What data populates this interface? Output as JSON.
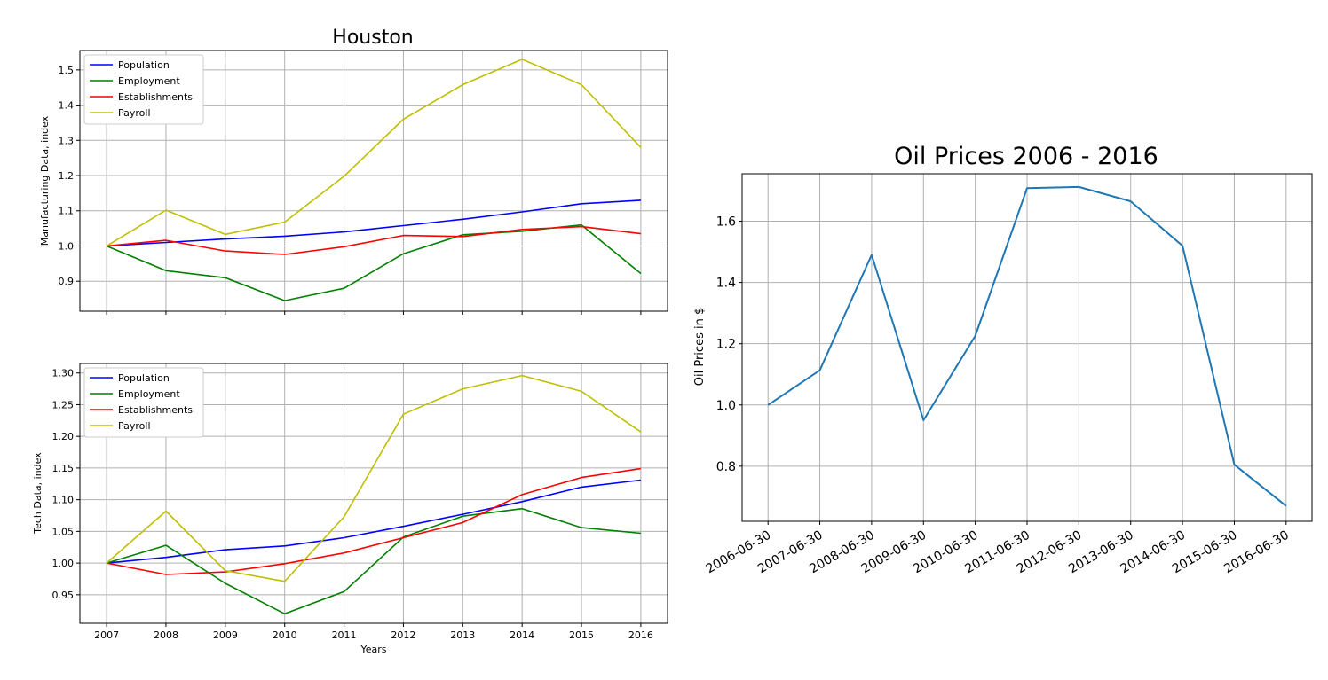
{
  "chart_data": [
    {
      "type": "line",
      "title": "Houston",
      "xlabel": "",
      "ylabel": "Manufacturing Data, index",
      "x": [
        2007,
        2008,
        2009,
        2010,
        2011,
        2012,
        2013,
        2014,
        2015,
        2016
      ],
      "xlim": [
        2006.55,
        2016.45
      ],
      "ylim": [
        0.815,
        1.555
      ],
      "yticks": [
        "0.9",
        "1.0",
        "1.1",
        "1.2",
        "1.3",
        "1.4",
        "1.5"
      ],
      "ytick_values": [
        0.9,
        1.0,
        1.1,
        1.2,
        1.3,
        1.4,
        1.5
      ],
      "show_xticklabels": false,
      "grid": true,
      "legend_position": "upper-left",
      "series": [
        {
          "name": "Population",
          "color": "#0000ff",
          "values": [
            1.0,
            1.01,
            1.02,
            1.028,
            1.04,
            1.058,
            1.076,
            1.097,
            1.12,
            1.13
          ]
        },
        {
          "name": "Employment",
          "color": "#008000",
          "values": [
            1.0,
            0.93,
            0.91,
            0.845,
            0.88,
            0.978,
            1.032,
            1.042,
            1.06,
            0.922
          ]
        },
        {
          "name": "Establishments",
          "color": "#ff0000",
          "values": [
            1.0,
            1.016,
            0.986,
            0.976,
            0.998,
            1.03,
            1.027,
            1.047,
            1.055,
            1.035
          ]
        },
        {
          "name": "Payroll",
          "color": "#bfbf00",
          "values": [
            1.0,
            1.102,
            1.033,
            1.068,
            1.198,
            1.36,
            1.458,
            1.53,
            1.458,
            1.28
          ]
        }
      ]
    },
    {
      "type": "line",
      "title": "",
      "xlabel": "Years",
      "ylabel": "Tech Data, index",
      "x": [
        2007,
        2008,
        2009,
        2010,
        2011,
        2012,
        2013,
        2014,
        2015,
        2016
      ],
      "xticks": [
        "2007",
        "2008",
        "2009",
        "2010",
        "2011",
        "2012",
        "2013",
        "2014",
        "2015",
        "2016"
      ],
      "xlim": [
        2006.55,
        2016.45
      ],
      "ylim": [
        0.905,
        1.315
      ],
      "yticks": [
        "0.95",
        "1.00",
        "1.05",
        "1.10",
        "1.15",
        "1.20",
        "1.25",
        "1.30"
      ],
      "ytick_values": [
        0.95,
        1.0,
        1.05,
        1.1,
        1.15,
        1.2,
        1.25,
        1.3
      ],
      "show_xticklabels": true,
      "grid": true,
      "legend_position": "upper-left",
      "series": [
        {
          "name": "Population",
          "color": "#0000ff",
          "values": [
            1.0,
            1.009,
            1.021,
            1.027,
            1.04,
            1.058,
            1.077,
            1.097,
            1.12,
            1.131
          ]
        },
        {
          "name": "Employment",
          "color": "#008000",
          "values": [
            1.0,
            1.028,
            0.968,
            0.92,
            0.955,
            1.041,
            1.074,
            1.086,
            1.056,
            1.047
          ]
        },
        {
          "name": "Establishments",
          "color": "#ff0000",
          "values": [
            1.0,
            0.982,
            0.986,
            0.999,
            1.016,
            1.04,
            1.064,
            1.108,
            1.135,
            1.149
          ]
        },
        {
          "name": "Payroll",
          "color": "#bfbf00",
          "values": [
            1.0,
            1.082,
            0.988,
            0.971,
            1.073,
            1.235,
            1.275,
            1.296,
            1.271,
            1.207
          ]
        }
      ]
    },
    {
      "type": "line",
      "title": "Oil Prices 2006 - 2016",
      "xlabel": "",
      "ylabel": "Oil Prices in $",
      "categories": [
        "2006-06-30",
        "2007-06-30",
        "2008-06-30",
        "2009-06-30",
        "2010-06-30",
        "2011-06-30",
        "2012-06-30",
        "2013-06-30",
        "2014-06-30",
        "2015-06-30",
        "2016-06-30"
      ],
      "ylim": [
        0.62,
        1.755
      ],
      "yticks": [
        "0.8",
        "1.0",
        "1.2",
        "1.4",
        "1.6"
      ],
      "ytick_values": [
        0.8,
        1.0,
        1.2,
        1.4,
        1.6
      ],
      "grid": true,
      "series": [
        {
          "color": "#1f77b4",
          "values": [
            1.0,
            1.113,
            1.49,
            0.95,
            1.225,
            1.708,
            1.712,
            1.665,
            1.52,
            0.805,
            0.67
          ]
        }
      ]
    }
  ]
}
